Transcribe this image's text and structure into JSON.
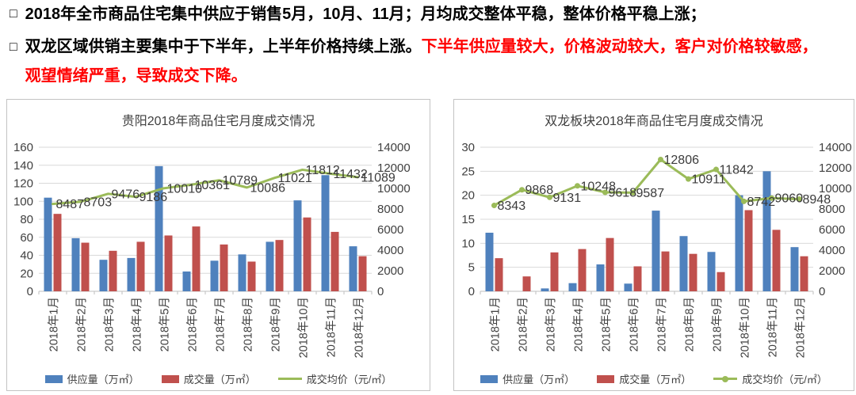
{
  "bullets": {
    "marker": "□",
    "item1": {
      "black": "2018年全市商品住宅集中供应于销售5月，10月、11月；月均成交整体平稳，整体价格平稳上涨；"
    },
    "item2": {
      "black": "双龙区域供销主要集中于下半年，上半年价格持续上涨。",
      "red_line1": "下半年供应量较大，价格波动较大，客户对价格较敏感，",
      "red_line2": "观望情绪严重，导致成交下降。"
    },
    "red_color": "#ff0000"
  },
  "chart_data": [
    {
      "type": "bar",
      "subtype": "bar+line combo, dual axis",
      "title": "贵阳2018年商品住宅月度成交情况",
      "categories": [
        "2018年1月",
        "2018年2月",
        "2018年3月",
        "2018年4月",
        "2018年5月",
        "2018年6月",
        "2018年7月",
        "2018年8月",
        "2018年9月",
        "2018年10月",
        "2018年11月",
        "2018年12月"
      ],
      "series": [
        {
          "name": "供应量（万㎡）",
          "type": "bar",
          "axis": "left",
          "color": "#4f81bd",
          "values": [
            104,
            59,
            35,
            37,
            139,
            22,
            34,
            41,
            55,
            101,
            129,
            50
          ]
        },
        {
          "name": "成交量（万㎡）",
          "type": "bar",
          "axis": "left",
          "color": "#c0504d",
          "values": [
            86,
            54,
            45,
            55,
            62,
            72,
            52,
            33,
            57,
            82,
            66,
            39
          ]
        },
        {
          "name": "成交均价（元/㎡）",
          "type": "line",
          "axis": "right",
          "color": "#9bbb59",
          "markers": false,
          "data_labels": true,
          "values": [
            8487,
            8703,
            9476,
            9186,
            10010,
            10361,
            10789,
            10086,
            11021,
            11812,
            11432,
            11089
          ]
        }
      ],
      "left_axis": {
        "min": 0,
        "max": 160,
        "step": 20
      },
      "right_axis": {
        "min": 0,
        "max": 14000,
        "step": 2000
      },
      "grid": true,
      "legend_position": "bottom"
    },
    {
      "type": "bar",
      "subtype": "bar+line combo, dual axis",
      "title": "双龙板块2018年商品住宅月度成交情况",
      "categories": [
        "2018年1月",
        "2018年2月",
        "2018年3月",
        "2018年4月",
        "2018年5月",
        "2018年6月",
        "2018年7月",
        "2018年8月",
        "2018年9月",
        "2018年10月",
        "2018年11月",
        "2018年12月"
      ],
      "series": [
        {
          "name": "供应量（万㎡）",
          "type": "bar",
          "axis": "left",
          "color": "#4f81bd",
          "values": [
            12.2,
            0,
            0.6,
            1.7,
            5.6,
            1.6,
            16.8,
            11.5,
            8.2,
            20,
            25,
            9.2
          ]
        },
        {
          "name": "成交量（万㎡）",
          "type": "bar",
          "axis": "left",
          "color": "#c0504d",
          "values": [
            6.9,
            3.1,
            8.1,
            8.8,
            11.1,
            5.2,
            8.3,
            7.8,
            4,
            16.9,
            12.8,
            7.3
          ]
        },
        {
          "name": "成交均价（元/㎡）",
          "type": "line",
          "axis": "right",
          "color": "#9bbb59",
          "markers": true,
          "data_labels": true,
          "values": [
            8343,
            9868,
            9131,
            10248,
            9618,
            9587,
            12806,
            10911,
            11842,
            8742,
            9060,
            8948
          ]
        }
      ],
      "left_axis": {
        "min": 0,
        "max": 30,
        "step": 5
      },
      "right_axis": {
        "min": 0,
        "max": 14000,
        "step": 2000
      },
      "grid": true,
      "legend_position": "bottom"
    }
  ]
}
